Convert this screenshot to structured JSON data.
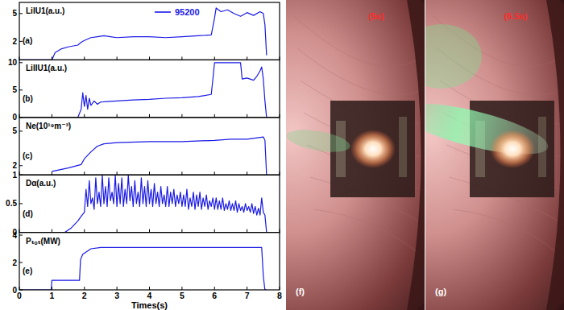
{
  "chart_data": [
    {
      "type": "line",
      "panel_label": "(a)",
      "ylabel": "LiIU1(a.u.)",
      "legend": "top",
      "tick_labels": "y",
      "xlim": [
        0,
        8
      ],
      "xticks": [
        0,
        1,
        2,
        3,
        4,
        5,
        6,
        7,
        8
      ],
      "ylim": [
        0,
        6.2
      ],
      "yticks": [
        2,
        5
      ],
      "series": [
        {
          "name": "95200",
          "color": "#1a1ae6",
          "x": [
            0,
            1.0,
            1.1,
            1.3,
            1.5,
            1.8,
            1.9,
            2.0,
            2.2,
            2.4,
            2.6,
            2.8,
            3.0,
            3.5,
            4.0,
            4.5,
            5.0,
            5.5,
            5.9,
            6.0,
            6.05,
            6.2,
            6.4,
            6.6,
            6.8,
            7.0,
            7.2,
            7.4,
            7.5,
            7.55,
            7.6
          ],
          "values": [
            0,
            0,
            0.8,
            1.2,
            1.4,
            1.6,
            1.9,
            2.1,
            2.4,
            2.5,
            2.6,
            2.5,
            2.4,
            2.5,
            2.5,
            2.4,
            2.5,
            2.6,
            2.7,
            4.5,
            5.6,
            5.2,
            5.4,
            5.0,
            4.7,
            5.1,
            4.8,
            5.2,
            5.0,
            3.8,
            0.5
          ]
        }
      ]
    },
    {
      "type": "line",
      "panel_label": "(b)",
      "ylabel": "LiIIU1(a.u.)",
      "tick_labels": "y",
      "xlim": [
        0,
        8
      ],
      "xticks": [
        0,
        1,
        2,
        3,
        4,
        5,
        6,
        7,
        8
      ],
      "ylim": [
        0,
        10.5
      ],
      "yticks": [
        0,
        5,
        10
      ],
      "series": [
        {
          "color": "#1a1ae6",
          "x": [
            0,
            1.8,
            1.9,
            1.95,
            2.0,
            2.05,
            2.1,
            2.15,
            2.2,
            2.3,
            2.4,
            2.5,
            2.7,
            3.0,
            3.5,
            4.0,
            4.5,
            5.0,
            5.5,
            5.9,
            5.95,
            6.0,
            6.8,
            6.85,
            7.0,
            7.2,
            7.3,
            7.4,
            7.45,
            7.5,
            7.55,
            7.6
          ],
          "values": [
            0,
            0,
            1.5,
            4.5,
            2.0,
            4.0,
            1.5,
            3.5,
            2.2,
            3.0,
            2.4,
            2.8,
            2.9,
            3.0,
            3.2,
            3.3,
            3.5,
            3.6,
            3.8,
            4.2,
            7,
            10,
            10,
            7.0,
            7.2,
            6.8,
            7.5,
            8.5,
            9.2,
            7.0,
            3,
            0
          ]
        }
      ]
    },
    {
      "type": "line",
      "panel_label": "(c)",
      "ylabel": "Ne(10¹⁹m⁻³)",
      "tick_labels": "y",
      "xlim": [
        0,
        8
      ],
      "xticks": [
        0,
        1,
        2,
        3,
        4,
        5,
        6,
        7,
        8
      ],
      "ylim": [
        1.2,
        6.2
      ],
      "yticks": [
        2,
        5
      ],
      "series": [
        {
          "color": "#1a1ae6",
          "x": [
            1.0,
            1.5,
            1.9,
            2.0,
            2.2,
            2.4,
            2.6,
            3.0,
            4.0,
            5.0,
            6.0,
            6.5,
            7.0,
            7.5,
            7.55,
            7.6
          ],
          "values": [
            1.5,
            1.8,
            2.1,
            2.6,
            3.2,
            3.7,
            3.9,
            4.0,
            4.1,
            4.1,
            4.2,
            4.3,
            4.3,
            4.5,
            4.2,
            1.2
          ]
        }
      ]
    },
    {
      "type": "line",
      "panel_label": "(d)",
      "ylabel": "Dα(a.u.)",
      "tick_labels": "y",
      "xlim": [
        0,
        8
      ],
      "xticks": [
        0,
        1,
        2,
        3,
        4,
        5,
        6,
        7,
        8
      ],
      "ylim": [
        0,
        1
      ],
      "yticks": [
        0,
        0.5,
        1
      ],
      "series": [
        {
          "color": "#1a1ae6",
          "x": [
            0,
            1.4,
            1.6,
            1.8,
            1.9,
            2.0,
            2.05,
            2.1,
            2.15,
            2.2,
            2.25,
            2.3,
            2.35,
            2.4,
            2.45,
            2.5,
            2.55,
            2.6,
            2.65,
            2.7,
            2.75,
            2.8,
            2.85,
            2.9,
            2.95,
            3.0,
            3.05,
            3.1,
            3.15,
            3.2,
            3.25,
            3.3,
            3.35,
            3.4,
            3.45,
            3.5,
            3.55,
            3.6,
            3.65,
            3.7,
            3.75,
            3.8,
            3.85,
            3.9,
            3.95,
            4.0,
            4.05,
            4.1,
            4.15,
            4.2,
            4.25,
            4.3,
            4.35,
            4.4,
            4.45,
            4.5,
            4.55,
            4.6,
            4.65,
            4.7,
            4.75,
            4.8,
            4.85,
            4.9,
            4.95,
            5.0,
            5.05,
            5.1,
            5.15,
            5.2,
            5.25,
            5.3,
            5.35,
            5.4,
            5.45,
            5.5,
            5.55,
            5.6,
            5.65,
            5.7,
            5.75,
            5.8,
            5.85,
            5.9,
            5.95,
            6.0,
            6.05,
            6.1,
            6.15,
            6.2,
            6.25,
            6.3,
            6.35,
            6.4,
            6.45,
            6.5,
            6.55,
            6.6,
            6.65,
            6.7,
            6.75,
            6.8,
            6.85,
            6.9,
            6.95,
            7.0,
            7.05,
            7.1,
            7.15,
            7.2,
            7.25,
            7.3,
            7.35,
            7.4,
            7.45,
            7.5,
            7.55,
            7.6
          ],
          "values": [
            0,
            0,
            0.08,
            0.2,
            0.28,
            0.35,
            0.75,
            0.45,
            0.9,
            0.5,
            0.6,
            0.4,
            0.95,
            0.5,
            0.7,
            0.45,
            1.0,
            0.5,
            0.8,
            0.45,
            0.95,
            0.55,
            0.7,
            0.5,
            1.0,
            0.45,
            0.85,
            0.5,
            0.95,
            0.45,
            0.75,
            0.5,
            1.0,
            0.55,
            0.8,
            0.45,
            0.9,
            0.5,
            0.7,
            0.45,
            0.95,
            0.5,
            0.8,
            0.45,
            0.9,
            0.5,
            0.75,
            0.45,
            0.85,
            0.5,
            0.7,
            0.45,
            0.8,
            0.5,
            0.65,
            0.45,
            0.8,
            0.45,
            0.7,
            0.5,
            0.75,
            0.45,
            0.65,
            0.5,
            0.7,
            0.45,
            0.65,
            0.45,
            0.75,
            0.4,
            0.6,
            0.45,
            0.7,
            0.4,
            0.65,
            0.45,
            0.7,
            0.4,
            0.6,
            0.45,
            0.65,
            0.4,
            0.55,
            0.45,
            0.6,
            0.4,
            0.6,
            0.4,
            0.55,
            0.4,
            0.6,
            0.38,
            0.5,
            0.4,
            0.55,
            0.38,
            0.5,
            0.38,
            0.55,
            0.35,
            0.5,
            0.38,
            0.45,
            0.35,
            0.5,
            0.38,
            0.45,
            0.35,
            0.5,
            0.33,
            0.45,
            0.3,
            0.42,
            0.3,
            0.6,
            0.35,
            0.3,
            0
          ]
        }
      ]
    },
    {
      "type": "line",
      "panel_label": "(e)",
      "ylabel": "Pₜₒₜ(MW)",
      "xlabel": "Times(s)",
      "xlim": [
        0,
        8
      ],
      "xticks": [
        0,
        1,
        2,
        3,
        4,
        5,
        6,
        7,
        8
      ],
      "ylim": [
        0,
        4.2
      ],
      "yticks": [
        0,
        2,
        4
      ],
      "series": [
        {
          "color": "#1a1ae6",
          "x": [
            0,
            0.98,
            1.0,
            1.85,
            1.88,
            1.95,
            2.2,
            2.5,
            4.0,
            6.0,
            7.45,
            7.5,
            7.55,
            7.6
          ],
          "values": [
            0,
            0,
            0.7,
            0.7,
            2.2,
            2.6,
            3.0,
            3.1,
            3.1,
            3.1,
            3.1,
            1.0,
            0,
            0
          ]
        }
      ]
    }
  ],
  "images": [
    {
      "time_label": "(5s)",
      "panel_label": "(f)"
    },
    {
      "time_label": "(6.5s)",
      "panel_label": "(g)"
    }
  ]
}
